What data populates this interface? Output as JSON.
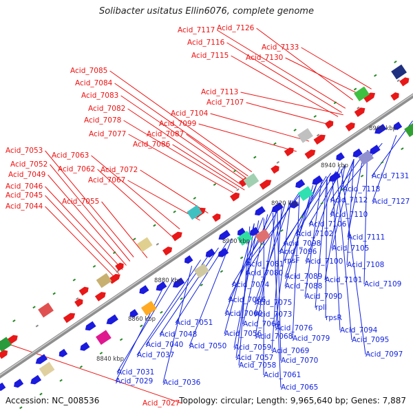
{
  "title": "Solibacter usitatus Ellin6076, complete genome",
  "footer": {
    "accession": "Accession: NC_008536",
    "summary": "Topology: circular; Length: 9,965,640 bp; Genes: 7,887"
  },
  "colors": {
    "forward_label": "#ee1111",
    "reverse_label": "#1122dd",
    "backbone": "#8f8f8f",
    "tick": "#228822"
  },
  "scale_ticks": [
    "8840 kbp",
    "8860 kbp",
    "8880 kbp",
    "8900 kbp",
    "8920 kbp",
    "8940 kbp",
    "8960 kbp"
  ],
  "forward_labels": [
    "Acid_7027",
    "Acid_7126",
    "Acid_7117",
    "Acid_7116",
    "Acid_7133",
    "Acid_7115",
    "Acid_7130",
    "Acid_7085",
    "Acid_7084",
    "Acid_7113",
    "Acid_7083",
    "Acid_7107",
    "Acid_7082",
    "Acid_7104",
    "Acid_7078",
    "Acid_7099",
    "Acid_7077",
    "Acid_7087",
    "Acid_7086",
    "Acid_7053",
    "Acid_7063",
    "Acid_7052",
    "Acid_7062",
    "Acid_7072",
    "Acid_7049",
    "Acid_7067",
    "Acid_7046",
    "Acid_7045",
    "Acid_7055",
    "Acid_7044"
  ],
  "reverse_labels": [
    "Acid_7131",
    "Acid_7118",
    "Acid_7127",
    "Acid_7112",
    "Acid_7110",
    "Acid_7106",
    "Acid_7111",
    "Acid_7102",
    "Acid_7105",
    "Acid_7098",
    "Acid_7096",
    "Acid_7100",
    "Acid_7108",
    "Acid_7081",
    "rpsF",
    "Acid_7080",
    "Acid_7101",
    "Acid_7089",
    "Acid_7109",
    "Acid_7088",
    "Acid_7074",
    "Acid_7090",
    "Acid_7066",
    "Acid_7075",
    "rplI",
    "Acid_7060",
    "Acid_7073",
    "rpsR",
    "Acid_7064",
    "Acid_7076",
    "Acid_7094",
    "Acid_7051",
    "Acid_7068",
    "Acid_7079",
    "Acid_7095",
    "Acid_7048",
    "Acid_7056",
    "Acid_7040",
    "Acid_7050",
    "Acid_7059",
    "Acid_7069",
    "Acid_7097",
    "Acid_7037",
    "Acid_7057",
    "Acid_7070",
    "Acid_7058",
    "Acid_7031",
    "Acid_7061",
    "Acid_7029",
    "Acid_7036",
    "Acid_7065"
  ]
}
